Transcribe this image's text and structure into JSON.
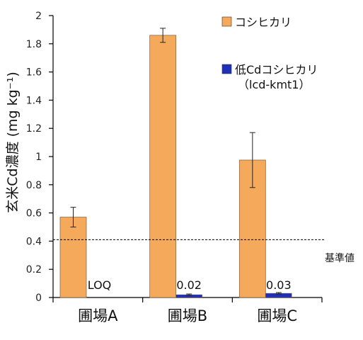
{
  "chart_data": {
    "type": "bar",
    "ylabel": "玄米Cd濃度 (mg kg⁻¹)",
    "ylim": [
      0,
      2
    ],
    "yticks": [
      "0",
      "0.2",
      "0.4",
      "0.6",
      "0.8",
      "1",
      "1.2",
      "1.4",
      "1.6",
      "1.8",
      "2"
    ],
    "ytick_values": [
      0,
      0.2,
      0.4,
      0.6,
      0.8,
      1.0,
      1.2,
      1.4,
      1.6,
      1.8,
      2.0
    ],
    "categories": [
      "圃場A",
      "圃場B",
      "圃場C"
    ],
    "series": [
      {
        "name": "コシヒカリ",
        "color": "#F5A95B",
        "values": [
          0.57,
          1.86,
          0.975
        ],
        "errors": [
          0.07,
          0.05,
          0.195
        ]
      },
      {
        "name": "低Cdコシヒカリ",
        "name_sub": "（lcd-kmt1）",
        "color": "#1F2FB8",
        "values": [
          0,
          0.02,
          0.03
        ],
        "errors": [
          0,
          0.005,
          0.005
        ],
        "value_labels": [
          "LOQ",
          "0.02",
          "0.03"
        ]
      }
    ],
    "reference_line": {
      "value": 0.41,
      "label": "基準値",
      "style": "dashed"
    },
    "legend_position": "top-right",
    "grid": false
  }
}
